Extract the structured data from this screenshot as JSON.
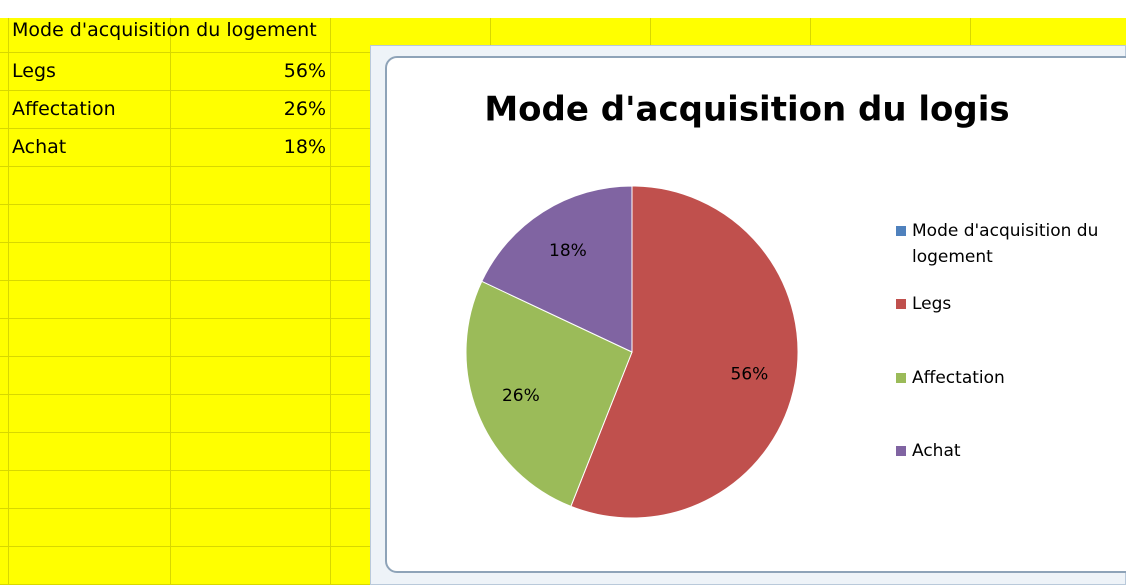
{
  "table": {
    "header": "Mode d'acquisition du logement",
    "rows": [
      [
        "Legs",
        "56%"
      ],
      [
        "Affectation",
        "26%"
      ],
      [
        "Achat",
        "18%"
      ]
    ]
  },
  "chart_data": {
    "type": "pie",
    "title": "Mode d'acquisition du logis",
    "name": "Mode d'acquisition du logement",
    "name_color": "#4f81bd",
    "categories": [
      "Legs",
      "Affectation",
      "Achat"
    ],
    "values": [
      56,
      26,
      18
    ],
    "value_labels": [
      "56%",
      "26%",
      "18%"
    ],
    "colors": [
      "#c0504d",
      "#9bbb59",
      "#8064a2"
    ]
  }
}
